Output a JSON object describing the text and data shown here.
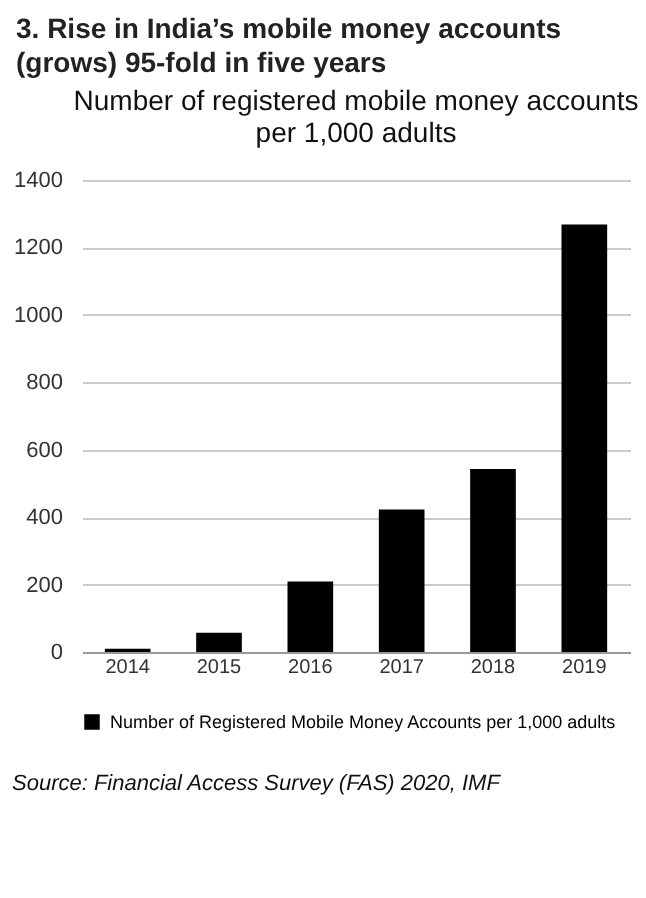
{
  "chart_data": {
    "type": "bar",
    "title": "3.   Rise in India’s mobile money accounts (grows) 95-fold in five years",
    "subtitle": "Number of registered mobile money accounts per 1,000 adults",
    "categories": [
      "2014",
      "2015",
      "2016",
      "2017",
      "2018",
      "2019"
    ],
    "series": [
      {
        "name": "Number of Registered Mobile Money Accounts per 1,000 adults",
        "color": "#000000",
        "values": [
          10,
          57,
          209,
          423,
          543,
          1268
        ]
      }
    ],
    "ylim": [
      0,
      1400
    ],
    "yticks": [
      0,
      200,
      400,
      600,
      800,
      1000,
      1200,
      1400
    ],
    "grid": "y",
    "legend": "bottom",
    "annotations": [
      "Source: Financial Access Survey (FAS) 2020, IMF"
    ]
  }
}
